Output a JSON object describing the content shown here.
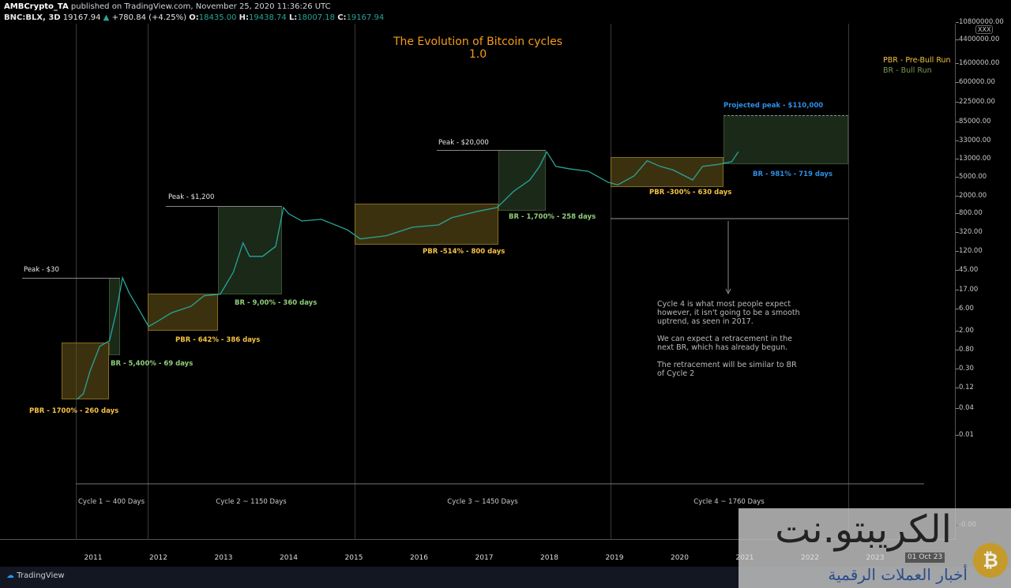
{
  "header": {
    "author": "AMBCrypto_TA",
    "published": "published on TradingView.com, November 25, 2020 11:36:26 UTC",
    "symbol": "BNC:BLX, 3D",
    "last": "19167.94",
    "change": "+780.84 (+4.25%)",
    "o_label": "O:",
    "o": "18435.00",
    "h_label": "H:",
    "h": "19438.74",
    "l_label": "L:",
    "l": "18007.18",
    "c_label": "C:",
    "c": "19167.94"
  },
  "title_line1": "The Evolution of Bitcoin cycles",
  "title_line2": "1.0",
  "legend": {
    "pbr": "PBR - Pre-Bull Run",
    "br": "BR - Bull Run"
  },
  "annotations": {
    "peak1": "Peak - $30",
    "peak2": "Peak - $1,200",
    "peak3": "Peak - $20,000",
    "projected": "Projected peak - $110,000",
    "pbr1": "PBR - 1700% - 260 days",
    "br1": "BR - 5,400% - 69 days",
    "pbr2": "PBR - 642% - 386 days",
    "br2": "BR - 9,00% - 360 days",
    "pbr3": "PBR -514% - 800 days",
    "br3": "BR - 1,700% - 258 days",
    "pbr4": "PBR -300% - 630 days",
    "br4": "BR - 981% - 719 days"
  },
  "cycles": [
    "Cycle 1 ~ 400 Days",
    "Cycle 2 ~ 1150 Days",
    "Cycle 3 ~ 1450 Days",
    "Cycle 4 ~ 1760 Days"
  ],
  "note": "Cycle 4 is what most people expect\nhowever, it isn't going to be a smooth\nuptrend, as seen in 2017.\n\nWe can expect a retracement in the\nnext BR, which has already begun.\n\nThe retracement will be similar to BR\nof Cycle 2",
  "price_axis": [
    "10800000.00",
    "4400000.00",
    "1600000.00",
    "600000.00",
    "225000.00",
    "85000.00",
    "33000.00",
    "13000.00",
    "5000.00",
    "2000.00",
    "800.00",
    "320.00",
    "120.00",
    "45.00",
    "17.00",
    "6.00",
    "2.00",
    "0.80",
    "0.30",
    "0.12",
    "0.04",
    "0.01",
    "-0.00"
  ],
  "axis_badge": "XXX",
  "time_axis": [
    "2011",
    "2012",
    "2013",
    "2014",
    "2015",
    "2016",
    "2017",
    "2018",
    "2019",
    "2020",
    "2021",
    "2022",
    "2023"
  ],
  "crosshair_date": "01 Oct 23",
  "footer": {
    "brand": "TradingView"
  },
  "watermark": {
    "name": "الكريبتو.نت",
    "tagline": "أخبار العملات الرقمية",
    "coin": "₿"
  },
  "colors": {
    "up": "#26a69a",
    "down": "#ef5350",
    "title": "#f59c1a"
  },
  "series": [
    [
      2010.75,
      0.06
    ],
    [
      2010.85,
      0.08
    ],
    [
      2010.95,
      0.25
    ],
    [
      2011.1,
      0.9
    ],
    [
      2011.25,
      1.2
    ],
    [
      2011.35,
      5
    ],
    [
      2011.45,
      30
    ],
    [
      2011.55,
      14
    ],
    [
      2011.7,
      6
    ],
    [
      2011.85,
      2.5
    ],
    [
      2011.95,
      3
    ],
    [
      2012.2,
      5
    ],
    [
      2012.5,
      7
    ],
    [
      2012.7,
      12
    ],
    [
      2012.95,
      13
    ],
    [
      2013.15,
      40
    ],
    [
      2013.3,
      180
    ],
    [
      2013.4,
      90
    ],
    [
      2013.6,
      90
    ],
    [
      2013.8,
      150
    ],
    [
      2013.92,
      1100
    ],
    [
      2014.0,
      800
    ],
    [
      2014.2,
      550
    ],
    [
      2014.5,
      600
    ],
    [
      2014.9,
      350
    ],
    [
      2015.1,
      220
    ],
    [
      2015.5,
      260
    ],
    [
      2015.9,
      400
    ],
    [
      2016.3,
      450
    ],
    [
      2016.5,
      650
    ],
    [
      2016.9,
      900
    ],
    [
      2017.2,
      1100
    ],
    [
      2017.45,
      2500
    ],
    [
      2017.7,
      4500
    ],
    [
      2017.85,
      9000
    ],
    [
      2017.96,
      19000
    ],
    [
      2018.1,
      9000
    ],
    [
      2018.3,
      8000
    ],
    [
      2018.6,
      7000
    ],
    [
      2018.9,
      4000
    ],
    [
      2019.05,
      3500
    ],
    [
      2019.3,
      5500
    ],
    [
      2019.5,
      12000
    ],
    [
      2019.7,
      9000
    ],
    [
      2019.9,
      7500
    ],
    [
      2020.2,
      4500
    ],
    [
      2020.35,
      9000
    ],
    [
      2020.6,
      10000
    ],
    [
      2020.8,
      11500
    ],
    [
      2020.9,
      19000
    ]
  ]
}
